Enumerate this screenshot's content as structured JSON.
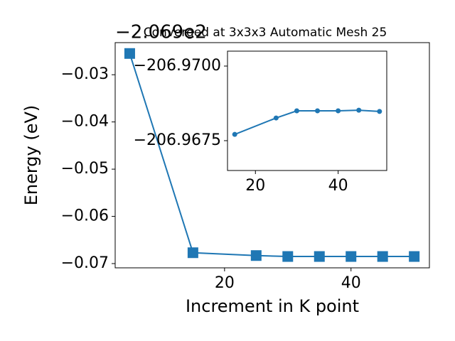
{
  "chart_data": [
    {
      "type": "line",
      "title": "Converged at 3x3x3 Automatic Mesh 25",
      "offset_text": "−2.069e2",
      "x_label": "Increment in K point",
      "y_label": "Energy (eV)",
      "marker": "square",
      "color": "#1f77b4",
      "x": [
        5,
        15,
        25,
        30,
        35,
        40,
        45,
        50
      ],
      "values": [
        -0.0255,
        -0.0677,
        -0.0683,
        -0.0685,
        -0.0685,
        -0.0685,
        -0.0685,
        -0.0685
      ],
      "xlim": [
        2.7,
        52.4
      ],
      "ylim": [
        -0.0709,
        -0.0232
      ],
      "xticks": [
        20,
        40
      ],
      "yticks": [
        {
          "value": -0.03,
          "label": "−0.03"
        },
        {
          "value": -0.04,
          "label": "−0.04"
        },
        {
          "value": -0.05,
          "label": "−0.05"
        },
        {
          "value": -0.06,
          "label": "−0.06"
        },
        {
          "value": -0.07,
          "label": "−0.07"
        }
      ]
    },
    {
      "type": "line",
      "marker": "circle",
      "color": "#1f77b4",
      "x": [
        15,
        25,
        30,
        35,
        40,
        45,
        50
      ],
      "values": [
        -206.96771,
        -206.96826,
        -206.9685,
        -206.9685,
        -206.9685,
        -206.96852,
        -206.96848
      ],
      "xlim": [
        13.25,
        51.75
      ],
      "ylim": [
        -206.9665,
        -206.9705
      ],
      "xticks": [
        20,
        40
      ],
      "yticks": [
        {
          "value": -206.97,
          "label": "−206.9700"
        },
        {
          "value": -206.9675,
          "label": "−206.9675"
        }
      ]
    }
  ]
}
